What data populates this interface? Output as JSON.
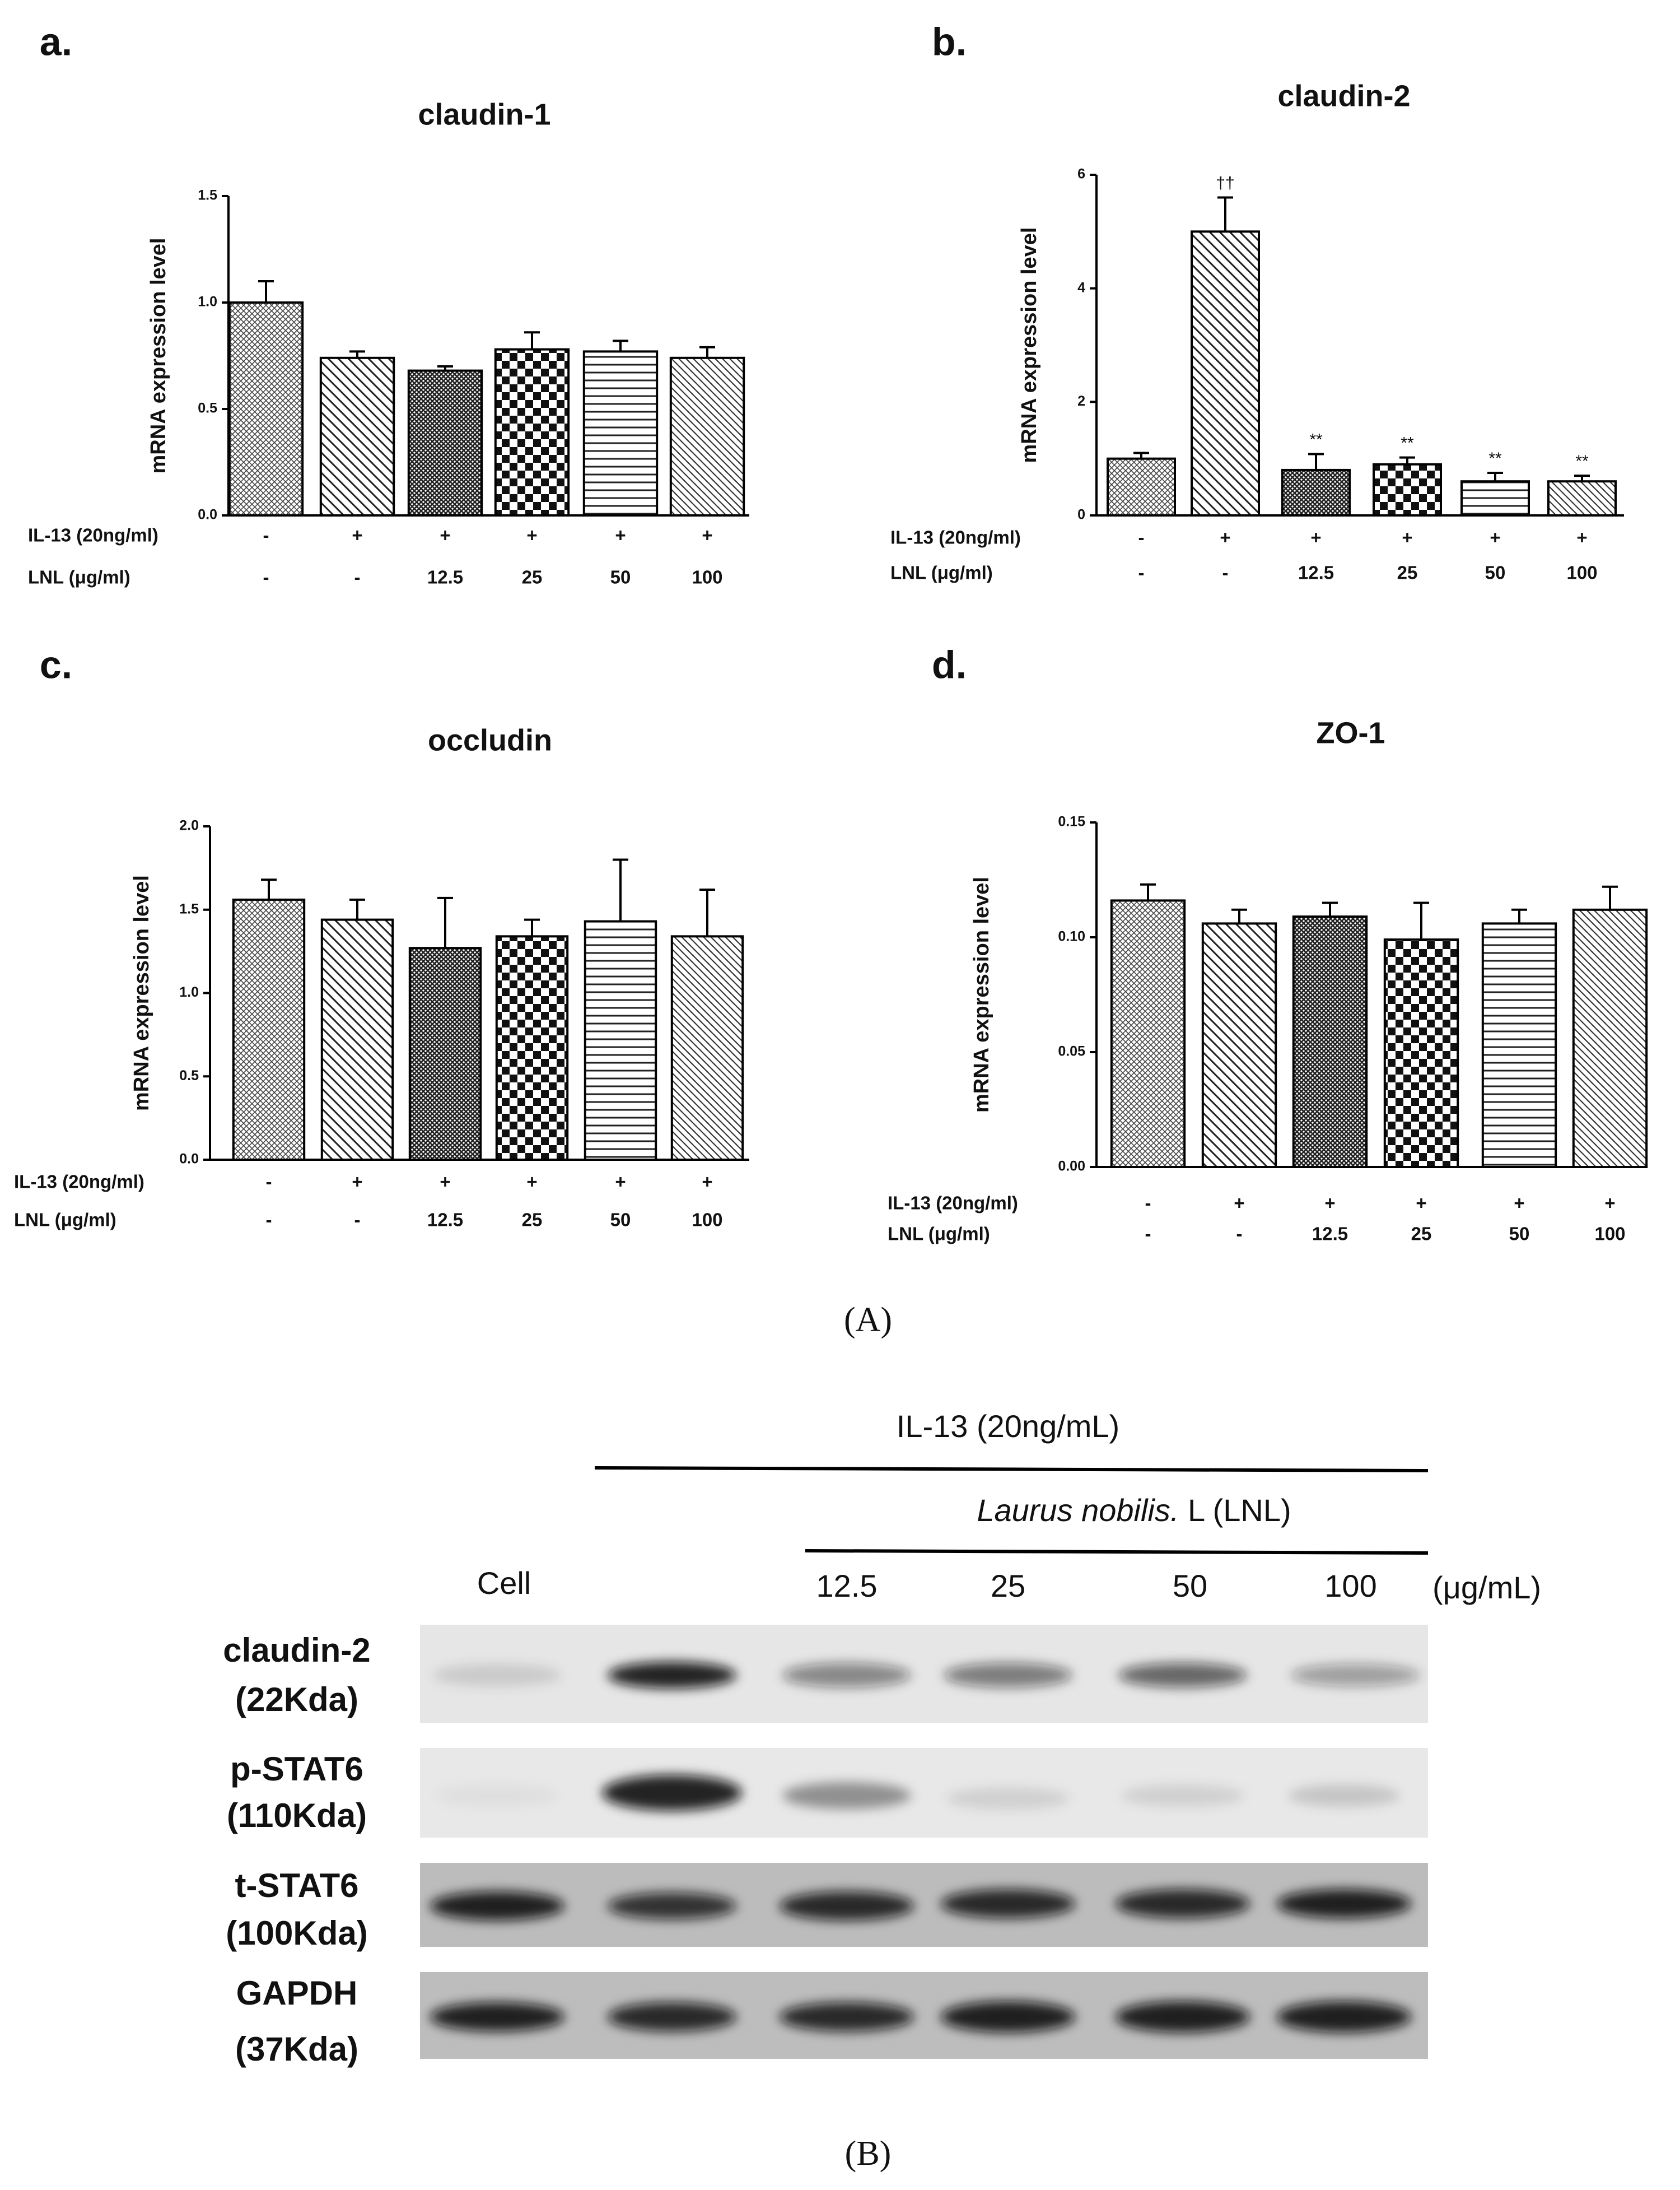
{
  "figure_label_A": "(A)",
  "figure_label_B": "(B)",
  "chart_data": [
    {
      "type": "bar",
      "panel": "a.",
      "title": "claudin-1",
      "y_label": "mRNA expression level",
      "ylim": [
        0,
        1.5
      ],
      "yticks": [
        {
          "value": 0,
          "label": "0.0"
        },
        {
          "value": 0.5,
          "label": "0.5"
        },
        {
          "value": 1,
          "label": "1.0"
        },
        {
          "value": 1.5,
          "label": "1.5"
        }
      ],
      "values": [
        1.0,
        0.74,
        0.68,
        0.78,
        0.77,
        0.74
      ],
      "errors": [
        0.1,
        0.03,
        0.02,
        0.08,
        0.05,
        0.05
      ],
      "condition_rows": [
        {
          "label": "IL-13 (20ng/ml)",
          "values": [
            "-",
            "+",
            "+",
            "+",
            "+",
            "+"
          ]
        },
        {
          "label": "LNL (μg/ml)",
          "values": [
            "-",
            "-",
            "12.5",
            "25",
            "50",
            "100"
          ]
        }
      ]
    },
    {
      "type": "bar",
      "panel": "b.",
      "title": "claudin-2",
      "y_label": "mRNA expression level",
      "ylim": [
        0,
        6
      ],
      "yticks": [
        0,
        2,
        4,
        6
      ],
      "values": [
        1.0,
        5.0,
        0.8,
        0.9,
        0.6,
        0.6
      ],
      "errors": [
        0.1,
        0.6,
        0.28,
        0.12,
        0.15,
        0.1
      ],
      "annotations": [
        null,
        "††",
        "**",
        "**",
        "**",
        "**"
      ],
      "condition_rows": [
        {
          "label": "IL-13 (20ng/ml)",
          "values": [
            "-",
            "+",
            "+",
            "+",
            "+",
            "+"
          ]
        },
        {
          "label": "LNL  (μg/ml)",
          "values": [
            "-",
            "-",
            "12.5",
            "25",
            "50",
            "100"
          ]
        }
      ]
    },
    {
      "type": "bar",
      "panel": "c.",
      "title": "occludin",
      "y_label": "mRNA expression level",
      "ylim": [
        0,
        2
      ],
      "yticks": [
        {
          "value": 0,
          "label": "0.0"
        },
        {
          "value": 0.5,
          "label": "0.5"
        },
        {
          "value": 1,
          "label": "1.0"
        },
        {
          "value": 1.5,
          "label": "1.5"
        },
        {
          "value": 2,
          "label": "2.0"
        }
      ],
      "values": [
        1.56,
        1.44,
        1.27,
        1.34,
        1.43,
        1.34
      ],
      "errors": [
        0.12,
        0.12,
        0.3,
        0.1,
        0.37,
        0.28
      ],
      "condition_rows": [
        {
          "label": "IL-13 (20ng/ml)",
          "values": [
            "-",
            "+",
            "+",
            "+",
            "+",
            "+"
          ]
        },
        {
          "label": "LNL  (μg/ml)",
          "values": [
            "-",
            "-",
            "12.5",
            "25",
            "50",
            "100"
          ]
        }
      ]
    },
    {
      "type": "bar",
      "panel": "d.",
      "title": "ZO-1",
      "y_label": "mRNA expression level",
      "ylim": [
        0,
        0.15
      ],
      "yticks": [
        {
          "value": 0,
          "label": "0.00"
        },
        {
          "value": 0.05,
          "label": "0.05"
        },
        {
          "value": 0.1,
          "label": "0.10"
        },
        {
          "value": 0.15,
          "label": "0.15"
        }
      ],
      "values": [
        0.116,
        0.106,
        0.109,
        0.099,
        0.106,
        0.112
      ],
      "errors": [
        0.007,
        0.006,
        0.006,
        0.016,
        0.006,
        0.01
      ],
      "condition_rows": [
        {
          "label": "IL-13 (20ng/ml)",
          "values": [
            "-",
            "+",
            "+",
            "+",
            "+",
            "+"
          ]
        },
        {
          "label": "LNL  (μg/ml)",
          "values": [
            "-",
            "-",
            "12.5",
            "25",
            "50",
            "100"
          ]
        }
      ]
    }
  ],
  "blot": {
    "il13_label": "IL-13 (20ng/mL)",
    "lnl_label_italic": "Laurus nobilis.",
    "lnl_label_rest": " L (LNL)",
    "lanes": [
      "Cell",
      null,
      "12.5",
      "25",
      "50",
      "100"
    ],
    "unit": "(μg/mL)",
    "rows": [
      {
        "name": "claudin-2",
        "size": "(22Kda)"
      },
      {
        "name": "p-STAT6",
        "size": "(110Kda)"
      },
      {
        "name": "t-STAT6",
        "size": "(100Kda)"
      },
      {
        "name": "GAPDH",
        "size": "(37Kda)"
      }
    ]
  }
}
